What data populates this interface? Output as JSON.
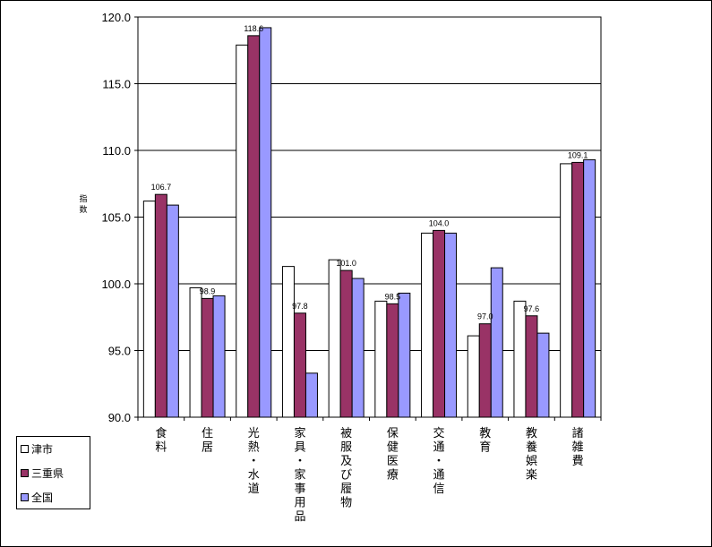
{
  "chart_data": {
    "type": "bar",
    "categories": [
      [
        "食",
        "料"
      ],
      [
        "住",
        "居"
      ],
      [
        "光",
        "熱",
        "・",
        "水",
        "道"
      ],
      [
        "家",
        "具",
        "・",
        "家",
        "事",
        "用",
        "品"
      ],
      [
        "被",
        "服",
        "及",
        "び",
        "履",
        "物"
      ],
      [
        "保",
        "健",
        "医",
        "療"
      ],
      [
        "交",
        "通",
        "・",
        "通",
        "信"
      ],
      [
        "教",
        "育"
      ],
      [
        "教",
        "養",
        "娯",
        "楽"
      ],
      [
        "諸",
        "雑",
        "費"
      ]
    ],
    "series": [
      {
        "name": "津市",
        "color": "#ffffff",
        "values": [
          106.2,
          99.7,
          117.9,
          101.3,
          101.8,
          98.7,
          103.8,
          96.1,
          98.7,
          109.0
        ]
      },
      {
        "name": "三重県",
        "color": "#993366",
        "values": [
          106.7,
          98.9,
          118.6,
          97.8,
          101.0,
          98.5,
          104.0,
          97.0,
          97.6,
          109.1
        ]
      },
      {
        "name": "全国",
        "color": "#9999ff",
        "values": [
          105.9,
          99.1,
          119.2,
          93.3,
          100.4,
          99.3,
          103.8,
          101.2,
          96.3,
          109.3
        ]
      }
    ],
    "data_labels": [
      "106.7",
      "98.9",
      "118.6",
      "97.8",
      "101.0",
      "98.5",
      "104.0",
      "97.0",
      "97.6",
      "109.1"
    ],
    "y_ticks": [
      "90.0",
      "95.0",
      "100.0",
      "105.0",
      "110.0",
      "115.0",
      "120.0"
    ],
    "ylim": [
      90,
      120
    ],
    "ylabel": [
      "指",
      "数"
    ],
    "grid": true,
    "legend_position": "bottom-left"
  }
}
